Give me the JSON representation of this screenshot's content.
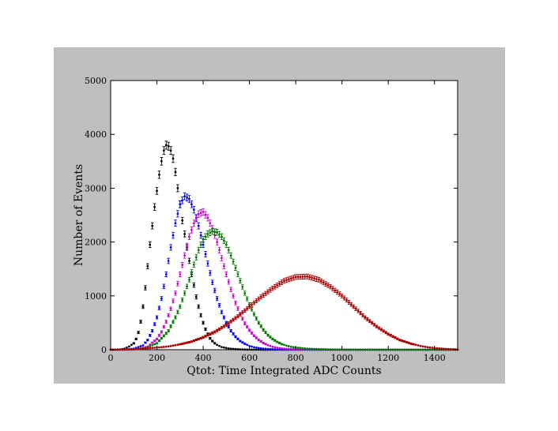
{
  "chart_data": {
    "type": "scatter",
    "xlabel": "Qtot: Time Integrated ADC Counts",
    "ylabel": "Number of Events",
    "xlim": [
      0,
      1500
    ],
    "ylim": [
      0,
      5000
    ],
    "xticks": [
      0,
      200,
      400,
      600,
      800,
      1000,
      1200,
      1400
    ],
    "yticks": [
      0,
      1000,
      2000,
      3000,
      4000,
      5000
    ],
    "grid": false,
    "error_bars": true,
    "series": [
      {
        "color": "#000000",
        "x": [
          0,
          20,
          40,
          60,
          80,
          100,
          110,
          120,
          130,
          140,
          150,
          160,
          170,
          180,
          190,
          200,
          210,
          220,
          230,
          240,
          250,
          260,
          270,
          280,
          290,
          300,
          310,
          320,
          330,
          340,
          350,
          360,
          370,
          380,
          390,
          400,
          410,
          420,
          430,
          440,
          450,
          460,
          470,
          480,
          490,
          500,
          520,
          540,
          560,
          580,
          600,
          640,
          700,
          800,
          900,
          1000,
          1100,
          1200,
          1300,
          1400,
          1500
        ],
        "y": [
          0,
          0,
          5,
          20,
          60,
          120,
          200,
          320,
          520,
          800,
          1150,
          1550,
          1950,
          2300,
          2650,
          2950,
          3250,
          3500,
          3700,
          3800,
          3780,
          3700,
          3550,
          3300,
          3000,
          2700,
          2400,
          2150,
          1900,
          1650,
          1400,
          1200,
          980,
          800,
          640,
          500,
          380,
          290,
          210,
          160,
          120,
          90,
          70,
          50,
          40,
          30,
          18,
          10,
          6,
          4,
          2,
          1,
          0,
          0,
          0,
          0,
          0,
          0,
          0,
          0,
          0
        ]
      },
      {
        "color": "#0000ff",
        "x": [
          0,
          60,
          100,
          140,
          160,
          180,
          200,
          220,
          240,
          260,
          280,
          300,
          320,
          340,
          360,
          380,
          400,
          420,
          440,
          460,
          480,
          500,
          520,
          540,
          560,
          580,
          600,
          620,
          640,
          660,
          680,
          700,
          750,
          800,
          900,
          1000,
          1100,
          1200,
          1300,
          1400,
          1500
        ],
        "y": [
          0,
          0,
          20,
          80,
          180,
          350,
          600,
          950,
          1400,
          1900,
          2350,
          2700,
          2850,
          2800,
          2600,
          2300,
          1950,
          1600,
          1250,
          950,
          700,
          500,
          350,
          240,
          160,
          110,
          70,
          45,
          30,
          20,
          12,
          8,
          4,
          2,
          0,
          0,
          0,
          0,
          0,
          0,
          0
        ]
      },
      {
        "color": "#cc00cc",
        "x": [
          0,
          80,
          120,
          160,
          200,
          220,
          240,
          260,
          280,
          300,
          320,
          340,
          360,
          380,
          400,
          420,
          440,
          460,
          480,
          500,
          520,
          540,
          560,
          580,
          600,
          620,
          640,
          660,
          680,
          700,
          720,
          740,
          760,
          800,
          900,
          1000,
          1100,
          1200,
          1300,
          1400,
          1500
        ],
        "y": [
          0,
          0,
          10,
          60,
          200,
          330,
          520,
          760,
          1050,
          1400,
          1750,
          2100,
          2350,
          2520,
          2560,
          2450,
          2250,
          2000,
          1700,
          1400,
          1120,
          870,
          660,
          490,
          360,
          260,
          180,
          125,
          85,
          55,
          36,
          24,
          16,
          8,
          2,
          0,
          0,
          0,
          0,
          0,
          0
        ]
      },
      {
        "color": "#007700",
        "x": [
          0,
          100,
          150,
          200,
          250,
          280,
          300,
          320,
          340,
          360,
          380,
          400,
          420,
          440,
          460,
          480,
          500,
          520,
          540,
          560,
          580,
          600,
          620,
          640,
          660,
          680,
          700,
          720,
          740,
          760,
          780,
          800,
          850,
          900,
          950,
          1000,
          1100,
          1200,
          1300,
          1400,
          1500
        ],
        "y": [
          0,
          5,
          30,
          120,
          350,
          600,
          800,
          1050,
          1300,
          1580,
          1850,
          2050,
          2150,
          2200,
          2180,
          2100,
          1950,
          1750,
          1520,
          1280,
          1050,
          840,
          660,
          500,
          370,
          270,
          200,
          145,
          105,
          75,
          55,
          40,
          20,
          10,
          5,
          2,
          0,
          0,
          0,
          0,
          0
        ]
      },
      {
        "color": "#aa0000",
        "x": [
          0,
          100,
          200,
          250,
          300,
          350,
          400,
          450,
          500,
          550,
          600,
          650,
          700,
          750,
          800,
          850,
          900,
          950,
          1000,
          1050,
          1100,
          1150,
          1200,
          1250,
          1300,
          1350,
          1400,
          1450,
          1500
        ],
        "y": [
          0,
          10,
          40,
          60,
          100,
          150,
          230,
          330,
          460,
          620,
          800,
          980,
          1140,
          1280,
          1350,
          1360,
          1300,
          1170,
          1000,
          800,
          600,
          430,
          290,
          180,
          110,
          60,
          30,
          15,
          5
        ]
      }
    ]
  }
}
